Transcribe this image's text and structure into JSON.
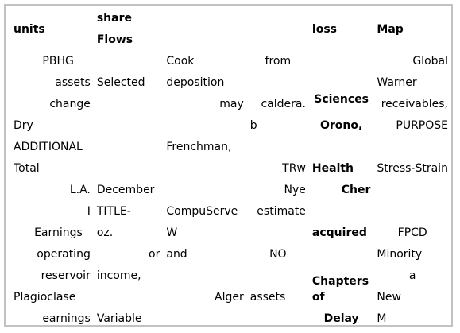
{
  "headers": [
    "units",
    "share Flows",
    "",
    "",
    "loss",
    "Map"
  ],
  "rows": [
    [
      "PBHG",
      "",
      "Cook",
      "from",
      "",
      "Global"
    ],
    [
      "assets",
      "Selected",
      "deposition",
      "",
      "",
      "Warner"
    ],
    [
      "change",
      "",
      "may",
      "caldera.",
      "Sciences",
      "receivables,"
    ],
    [
      "Dry",
      "",
      "",
      "b",
      "Orono,",
      "PURPOSE"
    ],
    [
      "ADDITIONAL",
      "",
      "Frenchman,",
      "",
      "",
      ""
    ],
    [
      "Total",
      "",
      "",
      "TRw",
      "Health",
      "Stress-Strain"
    ],
    [
      "L.A.",
      "December",
      "",
      "Nye",
      "Cher",
      ""
    ],
    [
      "I",
      "TITLE-",
      "CompuServe",
      "estimate",
      "",
      ""
    ],
    [
      "Earnings",
      "oz.",
      "W",
      "",
      "acquired",
      "FPCD"
    ],
    [
      "operating",
      "or",
      "and",
      "NO",
      "",
      "Minority"
    ],
    [
      "reservoir",
      "income,",
      "",
      "",
      "Chapters",
      "a"
    ],
    [
      "Plagioclase",
      "",
      "Alger",
      "assets",
      "of",
      "New"
    ],
    [
      "earnings",
      "Variable",
      "",
      "",
      "Delay",
      "M"
    ]
  ]
}
